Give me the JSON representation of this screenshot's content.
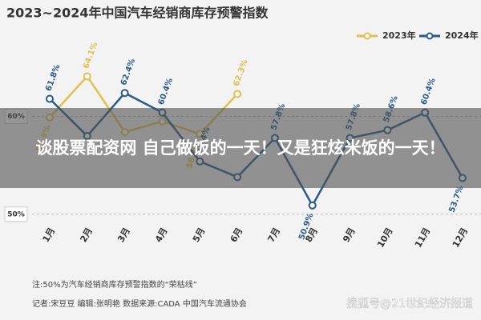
{
  "chart_data": {
    "type": "line",
    "title": "2023~2024年中国汽车经销商库存预警指数",
    "categories": [
      "1月",
      "2月",
      "3月",
      "4月",
      "5月",
      "6月",
      "7月",
      "8月",
      "9月",
      "10月",
      "11月",
      "12月"
    ],
    "series": [
      {
        "name": "2023年",
        "color": "#e3c04e",
        "values": [
          59.9,
          64.1,
          58.4,
          59.5,
          58.2,
          62.3,
          null,
          null,
          null,
          null,
          null,
          null
        ],
        "value_labels": [
          "59.9%",
          "64.1%",
          null,
          null,
          "58.2%",
          "62.3%",
          null,
          null,
          null,
          null,
          null,
          null
        ]
      },
      {
        "name": "2024年",
        "color": "#2a5a8c",
        "values": [
          61.8,
          58.0,
          62.4,
          60.4,
          55.4,
          53.8,
          57.8,
          50.9,
          57.8,
          58.6,
          60.4,
          53.7
        ],
        "value_labels": [
          "61.8%",
          null,
          "62.4%",
          "60.4%",
          "55.4%",
          null,
          "57.8%",
          "50.9%",
          "57.8%",
          "58.6%",
          "60.4%",
          "53.7%"
        ]
      }
    ],
    "ylim": [
      49,
      67
    ],
    "yticks": [
      {
        "value": 60,
        "label": "60%"
      },
      {
        "value": 50,
        "label": "50%"
      }
    ],
    "grid": true,
    "legend": "top-right",
    "note": "注:50%为汽车经销商库存预警指数的“荣枯线”",
    "credits": "记者:宋豆豆  编辑:张明艳  数据来源:CADA 中国汽车流通协会",
    "watermark": "搜狐号@21世纪经济报道",
    "banner": "谈股票配资网 自己做饭的一天！又是狂炫米饭的一天！"
  }
}
